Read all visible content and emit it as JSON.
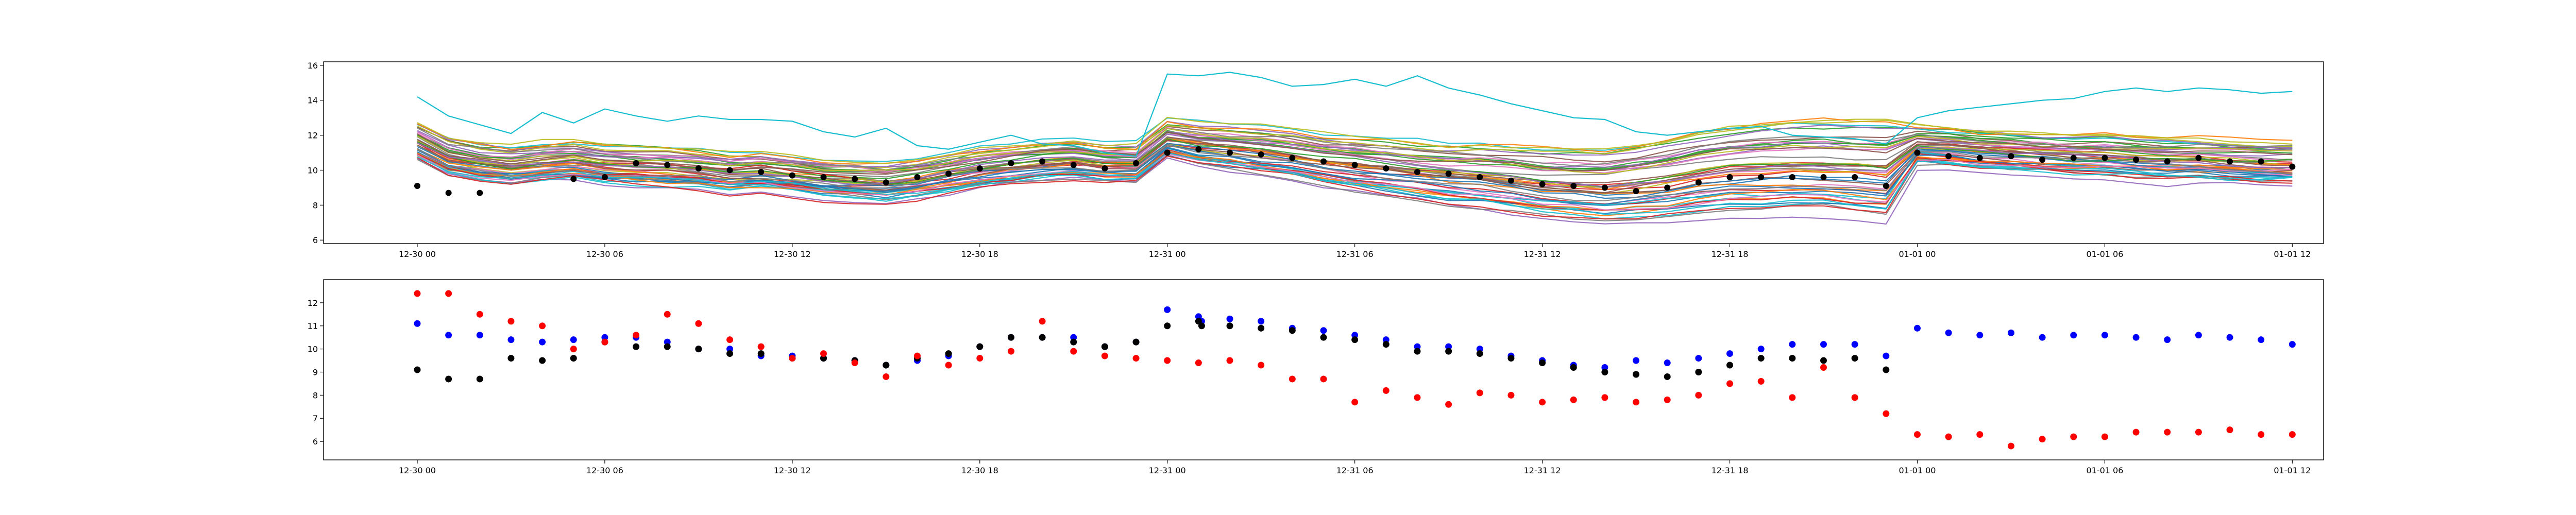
{
  "chart_data": [
    {
      "type": "line",
      "title": "",
      "xlabel": "",
      "ylabel": "",
      "x_range": [
        "12-29 21:00",
        "01-01 13:00"
      ],
      "ylim": [
        5.8,
        16.2
      ],
      "x_tick_labels": [
        "12-30 00",
        "12-30 06",
        "12-30 12",
        "12-30 18",
        "12-31 00",
        "12-31 06",
        "12-31 12",
        "12-31 18",
        "01-01 00",
        "01-01 06",
        "01-01 12"
      ],
      "y_tick_labels": [
        "6",
        "8",
        "10",
        "12",
        "14",
        "16"
      ],
      "grid": false,
      "legend": "none",
      "ensemble_hours": [
        0,
        1,
        2,
        3,
        4,
        5,
        6,
        7,
        8,
        9,
        10,
        11,
        12,
        13,
        14,
        15,
        16,
        17,
        18,
        19,
        20,
        21,
        22,
        23,
        24,
        25,
        26,
        27,
        28,
        29,
        30,
        31,
        32,
        33,
        34,
        35,
        36,
        37,
        38,
        39,
        40,
        41,
        42,
        43,
        44,
        45,
        46,
        47,
        48,
        49,
        50,
        51,
        52,
        53,
        54,
        55,
        56,
        57,
        58,
        59,
        60
      ],
      "ensemble_mean": [
        11.6,
        10.7,
        10.4,
        10.2,
        10.4,
        10.5,
        10.3,
        10.2,
        10.1,
        10.0,
        9.8,
        9.9,
        9.7,
        9.5,
        9.4,
        9.3,
        9.5,
        9.8,
        10.1,
        10.3,
        10.5,
        10.6,
        10.4,
        10.4,
        11.8,
        11.5,
        11.3,
        11.1,
        10.9,
        10.6,
        10.4,
        10.2,
        10.0,
        9.8,
        9.7,
        9.5,
        9.3,
        9.2,
        9.1,
        9.3,
        9.5,
        9.8,
        10.0,
        10.1,
        10.2,
        10.2,
        10.1,
        10.0,
        11.4,
        11.3,
        11.1,
        11.0,
        10.9,
        10.8,
        10.8,
        10.7,
        10.6,
        10.6,
        10.5,
        10.4,
        10.4
      ],
      "member_colors": [
        "#1f77b4",
        "#ff7f0e",
        "#2ca02c",
        "#d62728",
        "#9467bd",
        "#8c564b",
        "#e377c2",
        "#7f7f7f",
        "#bcbd22",
        "#17becf"
      ],
      "members_shown": 50,
      "highlight_member": {
        "color": "#17becf",
        "hours": [
          0,
          1,
          2,
          3,
          4,
          5,
          6,
          7,
          8,
          9,
          10,
          11,
          12,
          13,
          14,
          15,
          16,
          17,
          18,
          19,
          20,
          21,
          22,
          23,
          24,
          25,
          26,
          27,
          28,
          29,
          30,
          31,
          32,
          33,
          34,
          35,
          36,
          37,
          38,
          39,
          40,
          41,
          42,
          43,
          44,
          45,
          46,
          47,
          48,
          49,
          50,
          51,
          52,
          53,
          54,
          55,
          56,
          57,
          58,
          59,
          60
        ],
        "values": [
          14.2,
          13.1,
          12.6,
          12.1,
          13.3,
          12.7,
          13.5,
          13.1,
          12.8,
          13.1,
          12.9,
          12.9,
          12.8,
          12.2,
          11.9,
          12.4,
          11.4,
          11.2,
          11.6,
          12.0,
          11.5,
          11.4,
          11.0,
          10.8,
          15.5,
          15.4,
          15.6,
          15.3,
          14.8,
          14.9,
          15.2,
          14.8,
          15.4,
          14.7,
          14.3,
          13.8,
          13.4,
          13.0,
          12.9,
          12.2,
          12.0,
          12.2,
          12.4,
          12.5,
          12.0,
          11.9,
          11.8,
          11.5,
          13.0,
          13.4,
          13.6,
          13.8,
          14.0,
          14.1,
          14.5,
          14.7,
          14.5,
          14.7,
          14.6,
          14.4,
          14.5
        ]
      },
      "black_points": {
        "color": "#000000",
        "hours": [
          0,
          1,
          2,
          5,
          6,
          7,
          8,
          9,
          10,
          11,
          12,
          13,
          14,
          15,
          16,
          17,
          18,
          19,
          20,
          21,
          22,
          23,
          24,
          25,
          26,
          27,
          28,
          29,
          30,
          31,
          32,
          33,
          34,
          35,
          36,
          37,
          38,
          39,
          40,
          41,
          42,
          43,
          44,
          45,
          46,
          47,
          48,
          49,
          50,
          51,
          52,
          53,
          54,
          55,
          56,
          57,
          58,
          59,
          60
        ],
        "values": [
          9.1,
          8.7,
          8.7,
          9.5,
          9.6,
          10.4,
          10.3,
          10.1,
          10.0,
          9.9,
          9.7,
          9.6,
          9.5,
          9.3,
          9.6,
          9.8,
          10.1,
          10.4,
          10.5,
          10.3,
          10.1,
          10.4,
          11.0,
          11.2,
          11.0,
          10.9,
          10.7,
          10.5,
          10.3,
          10.1,
          9.9,
          9.8,
          9.6,
          9.4,
          9.2,
          9.1,
          9.0,
          8.8,
          9.0,
          9.3,
          9.6,
          9.6,
          9.6,
          9.6,
          9.6,
          9.1,
          11.0,
          10.8,
          10.7,
          10.8,
          10.6,
          10.7,
          10.7,
          10.6,
          10.5,
          10.7,
          10.5,
          10.5,
          10.2
        ]
      }
    },
    {
      "type": "scatter",
      "title": "",
      "xlabel": "",
      "ylabel": "",
      "x_range": [
        "12-29 21:00",
        "01-01 13:00"
      ],
      "ylim": [
        5.2,
        13.0
      ],
      "x_tick_labels": [
        "12-30 00",
        "12-30 06",
        "12-30 12",
        "12-30 18",
        "12-31 00",
        "12-31 06",
        "12-31 12",
        "12-31 18",
        "01-01 00",
        "01-01 06",
        "01-01 12"
      ],
      "y_tick_labels": [
        "6",
        "7",
        "8",
        "9",
        "10",
        "11",
        "12"
      ],
      "grid": false,
      "legend": "none",
      "series": [
        {
          "color": "#0000ff",
          "x": [
            0,
            1,
            2,
            3,
            4,
            5,
            6,
            7,
            8,
            9,
            10,
            11,
            12,
            13,
            14,
            15,
            16,
            17,
            18,
            19,
            20,
            21,
            22,
            23,
            24,
            25,
            25.1,
            26,
            27,
            28,
            29,
            30,
            31,
            32,
            33,
            34,
            35,
            36,
            37,
            38,
            39,
            40,
            41,
            42,
            43,
            44,
            45,
            46,
            47,
            48,
            49,
            50,
            51,
            52,
            53,
            54,
            55,
            56,
            57,
            58,
            59,
            60
          ],
          "y": [
            11.1,
            10.6,
            10.6,
            10.4,
            10.3,
            10.4,
            10.5,
            10.5,
            10.3,
            10.0,
            10.0,
            9.7,
            9.7,
            9.6,
            9.5,
            9.3,
            9.5,
            9.7,
            10.1,
            10.5,
            10.5,
            10.5,
            10.1,
            10.3,
            11.7,
            11.4,
            11.2,
            11.3,
            11.2,
            10.9,
            10.8,
            10.6,
            10.4,
            10.1,
            10.1,
            10.0,
            9.7,
            9.5,
            9.3,
            9.2,
            9.5,
            9.4,
            9.6,
            9.8,
            10.0,
            10.2,
            10.2,
            10.2,
            9.7,
            10.9,
            10.7,
            10.6,
            10.7,
            10.5,
            10.6,
            10.6,
            10.5,
            10.4,
            10.6,
            10.5,
            10.4,
            10.2
          ]
        },
        {
          "color": "#000000",
          "x": [
            0,
            1,
            2,
            3,
            4,
            5,
            6,
            7,
            8,
            9,
            10,
            11,
            12,
            13,
            14,
            15,
            16,
            17,
            18,
            19,
            20,
            21,
            22,
            23,
            24,
            25,
            25.1,
            26,
            27,
            28,
            29,
            30,
            31,
            32,
            33,
            34,
            35,
            36,
            37,
            38,
            39,
            40,
            41,
            42,
            43,
            44,
            45,
            46,
            47
          ],
          "y": [
            9.1,
            8.7,
            8.7,
            9.6,
            9.5,
            9.6,
            10.3,
            10.1,
            10.1,
            10.0,
            9.8,
            9.8,
            9.6,
            9.6,
            9.5,
            9.3,
            9.6,
            9.8,
            10.1,
            10.5,
            10.5,
            10.3,
            10.1,
            10.3,
            11.0,
            11.2,
            11.0,
            11.0,
            10.9,
            10.8,
            10.5,
            10.4,
            10.2,
            9.9,
            9.9,
            9.8,
            9.6,
            9.4,
            9.2,
            9.0,
            8.9,
            8.8,
            9.0,
            9.3,
            9.6,
            9.6,
            9.5,
            9.6,
            9.1
          ]
        },
        {
          "color": "#ff0000",
          "x": [
            0,
            1,
            2,
            3,
            4,
            5,
            6,
            7,
            8,
            9,
            10,
            11,
            12,
            13,
            14,
            15,
            16,
            17,
            18,
            19,
            20,
            21,
            22,
            23,
            24,
            25,
            26,
            27,
            28,
            29,
            30,
            31,
            32,
            33,
            34,
            35,
            36,
            37,
            38,
            39,
            40,
            41,
            42,
            43,
            44,
            45,
            46,
            47,
            48,
            49,
            50,
            51,
            52,
            53,
            54,
            55,
            56,
            57,
            58,
            59,
            60
          ],
          "y": [
            12.4,
            12.4,
            11.5,
            11.2,
            11.0,
            10.0,
            10.3,
            10.6,
            11.5,
            11.1,
            10.4,
            10.1,
            9.6,
            9.8,
            9.4,
            8.8,
            9.7,
            9.3,
            9.6,
            9.9,
            11.2,
            9.9,
            9.7,
            9.6,
            9.5,
            9.4,
            9.5,
            9.3,
            8.7,
            8.7,
            7.7,
            8.2,
            7.9,
            7.6,
            8.1,
            8.0,
            7.7,
            7.8,
            7.9,
            7.7,
            7.8,
            8.0,
            8.5,
            8.6,
            7.9,
            9.2,
            7.9,
            7.2,
            6.3,
            6.2,
            6.3,
            5.8,
            6.1,
            6.2,
            6.2,
            6.4,
            6.4,
            6.4,
            6.5,
            6.3,
            6.3
          ]
        }
      ]
    }
  ]
}
